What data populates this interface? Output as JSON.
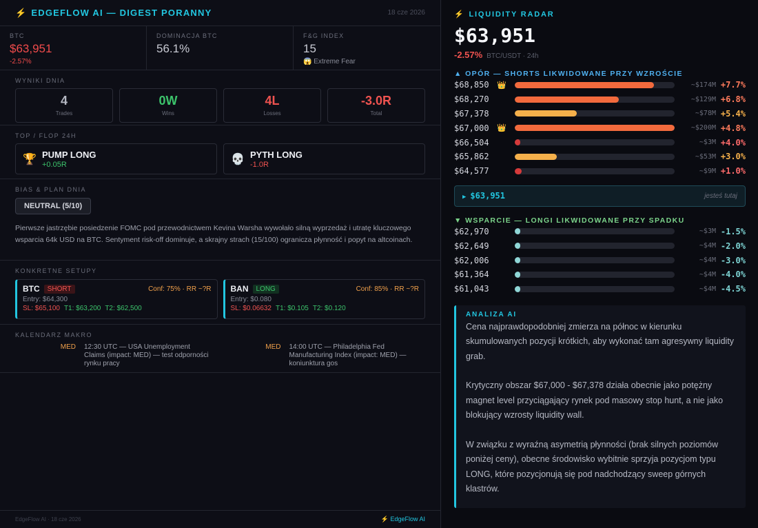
{
  "digest": {
    "title": "EDGEFLOW AI — DIGEST PORANNY",
    "date": "18 cze 2026",
    "stats": [
      {
        "label": "BTC",
        "value": "$63,951",
        "sub": "-2.57%"
      },
      {
        "label": "DOMINACJA BTC",
        "value": "56.1%",
        "sub": ""
      },
      {
        "label": "F&G INDEX",
        "value": "15",
        "sub": "😱 Extreme Fear"
      }
    ],
    "results": {
      "label": "WYNIKI DNIA",
      "cards": [
        {
          "value": "4",
          "label": "Trades"
        },
        {
          "value": "0W",
          "label": "Wins"
        },
        {
          "value": "4L",
          "label": "Losses"
        },
        {
          "value": "-3.0R",
          "label": "Total"
        }
      ]
    },
    "top_flop": {
      "label": "TOP / FLOP 24H",
      "top": {
        "icon": "🏆",
        "name": "PUMP LONG",
        "value": "+0.05R"
      },
      "flop": {
        "icon": "💀",
        "name": "PYTH LONG",
        "value": "-1.0R"
      }
    },
    "bias": {
      "label": "BIAS & PLAN DNIA",
      "badge": "NEUTRAL (5/10)",
      "text": "Pierwsze jastrzębie posiedzenie FOMC pod przewodnictwem Kevina Warsha wywołało silną wyprzedaż i utratę kluczowego wsparcia 64k USD na BTC. Sentyment risk-off dominuje, a skrajny strach (15/100) ogranicza płynność i popyt na altcoinach."
    },
    "setups": {
      "label": "KONKRETNE SETUPY",
      "items": [
        {
          "symbol": "BTC",
          "side": "SHORT",
          "conf": "Conf: 75% · RR ~?R",
          "entry": "Entry: $64,300",
          "sl": "SL: $65,100",
          "t1": "T1: $63,200",
          "t2": "T2: $62,500"
        },
        {
          "symbol": "BAN",
          "side": "LONG",
          "conf": "Conf: 85% · RR ~?R",
          "entry": "Entry: $0.080",
          "sl": "SL: $0.06632",
          "t1": "T1: $0.105",
          "t2": "T2: $0.120"
        }
      ]
    },
    "macro": {
      "label": "KALENDARZ MAKRO",
      "items": [
        {
          "impact": "MED",
          "text": "12:30 UTC — USA Unemployment Claims (impact: MED) — test odporności rynku pracy"
        },
        {
          "impact": "MED",
          "text": "14:00 UTC — Philadelphia Fed Manufacturing Index (impact: MED) — koniunktura gos"
        }
      ]
    },
    "footer": {
      "left": "EdgeFlow AI · 18 cze 2026",
      "right": "EdgeFlow AI",
      "right_icon": "⚡"
    }
  },
  "radar": {
    "title": "LIQUIDITY RADAR",
    "price": "$63,951",
    "change": "-2.57%",
    "pair": "BTC/USDT · 24h",
    "resistance": {
      "label": "▲ OPÓR — SHORTS LIKWIDOWANE PRZY WZROŚCIE",
      "levels": [
        {
          "price": "$68,850",
          "crown": "👑",
          "fill": 0.87,
          "color": "#f26a3d",
          "size": "~$174M",
          "pct": "+7.7%",
          "tone": "up-hi"
        },
        {
          "price": "$68,270",
          "crown": "",
          "fill": 0.65,
          "color": "#f26a3d",
          "size": "~$129M",
          "pct": "+6.8%",
          "tone": "up-hi"
        },
        {
          "price": "$67,378",
          "crown": "",
          "fill": 0.39,
          "color": "#f5b04b",
          "size": "~$78M",
          "pct": "+5.4%",
          "tone": "up-mid"
        },
        {
          "price": "$67,000",
          "crown": "👑",
          "fill": 1.0,
          "color": "#f26a3d",
          "size": "~$200M",
          "pct": "+4.8%",
          "tone": "up-hi"
        },
        {
          "price": "$66,504",
          "crown": "",
          "fill": 0.02,
          "color": "#d63a3a",
          "size": "~$3M",
          "pct": "+4.0%",
          "tone": "up-lo"
        },
        {
          "price": "$65,862",
          "crown": "",
          "fill": 0.265,
          "color": "#f5b04b",
          "size": "~$53M",
          "pct": "+3.0%",
          "tone": "up-mid"
        },
        {
          "price": "$64,577",
          "crown": "",
          "fill": 0.045,
          "color": "#d63a3a",
          "size": "~$9M",
          "pct": "+1.0%",
          "tone": "up-lo"
        }
      ]
    },
    "current": {
      "arrow": "▶",
      "price": "$63,951",
      "note": "jesteś tutaj"
    },
    "support": {
      "label": "▼ WSPARCIE — LONGI LIKWIDOWANE PRZY SPADKU",
      "levels": [
        {
          "price": "$62,970",
          "crown": "",
          "fill": 0.02,
          "color": "#8fd6d6",
          "size": "~$3M",
          "pct": "-1.5%",
          "tone": "down"
        },
        {
          "price": "$62,649",
          "crown": "",
          "fill": 0.02,
          "color": "#8fd6d6",
          "size": "~$4M",
          "pct": "-2.0%",
          "tone": "down"
        },
        {
          "price": "$62,006",
          "crown": "",
          "fill": 0.02,
          "color": "#8fd6d6",
          "size": "~$4M",
          "pct": "-3.0%",
          "tone": "down"
        },
        {
          "price": "$61,364",
          "crown": "",
          "fill": 0.02,
          "color": "#8fd6d6",
          "size": "~$4M",
          "pct": "-4.0%",
          "tone": "down"
        },
        {
          "price": "$61,043",
          "crown": "",
          "fill": 0.02,
          "color": "#8fd6d6",
          "size": "~$4M",
          "pct": "-4.5%",
          "tone": "down"
        }
      ]
    },
    "analysis": {
      "title": "ANALIZA AI",
      "paragraphs": [
        "Cena najprawdopodobniej zmierza na północ w kierunku skumulowanych pozycji krótkich, aby wykonać tam agresywny liquidity grab.",
        "Krytyczny obszar $67,000 - $67,378 działa obecnie jako potężny magnet level przyciągający rynek pod masowy stop hunt, a nie jako blokujący wzrosty liquidity wall.",
        "W związku z wyraźną asymetrią płynności (brak silnych poziomów poniżej ceny), obecne środowisko wybitnie sprzyja pozycjom typu LONG, które pozycjonują się pod nadchodzący sweep górnych klastrów."
      ]
    }
  }
}
